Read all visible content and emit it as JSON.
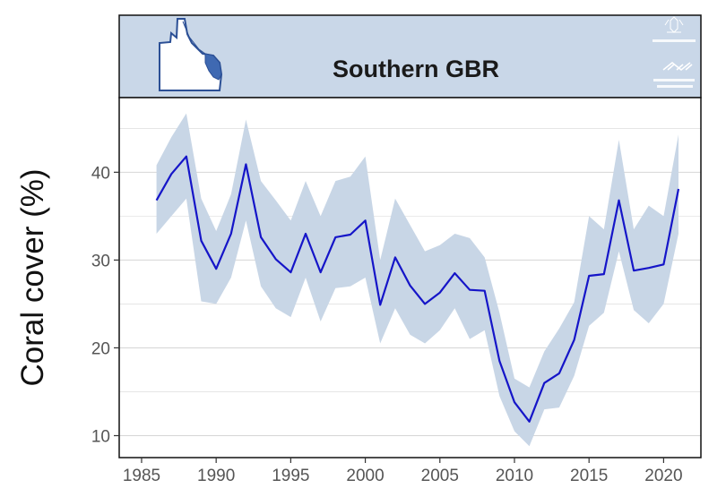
{
  "chart_data": {
    "type": "line",
    "title": "Southern GBR",
    "xlabel": "",
    "ylabel": "Coral cover (%)",
    "xlim": [
      1983.5,
      2022.5
    ],
    "ylim": [
      7.5,
      48.5
    ],
    "xticks": [
      1985,
      1990,
      1995,
      2000,
      2005,
      2010,
      2015,
      2020
    ],
    "yticks": [
      10,
      20,
      30,
      40
    ],
    "grid": "horizontal",
    "legend": "none",
    "series": [
      {
        "x": [
          1986,
          1987,
          1988,
          1989,
          1990,
          1991,
          1992,
          1993,
          1994,
          1995,
          1996,
          1997,
          1998,
          1999,
          2000,
          2001,
          2002,
          2003,
          2004,
          2005,
          2006,
          2007,
          2008,
          2009,
          2010,
          2011,
          2012,
          2013,
          2014,
          2015,
          2016,
          2017,
          2018,
          2019,
          2020,
          2021
        ],
        "y": [
          36.8,
          39.8,
          41.8,
          32.2,
          29.0,
          33.0,
          40.9,
          32.6,
          30.1,
          28.6,
          33.0,
          28.6,
          32.6,
          32.9,
          34.5,
          24.9,
          30.3,
          27.1,
          25.0,
          26.3,
          28.5,
          26.6,
          26.5,
          18.5,
          13.8,
          11.6,
          16.0,
          17.1,
          20.9,
          28.2,
          28.4,
          36.8,
          28.8,
          29.1,
          29.5,
          38.1
        ],
        "lower": [
          33.0,
          35.0,
          37.0,
          25.3,
          25.0,
          28.0,
          34.5,
          27.0,
          24.5,
          23.5,
          28.0,
          23.0,
          26.8,
          27.0,
          28.0,
          20.5,
          24.5,
          21.5,
          20.5,
          22.0,
          24.5,
          21.0,
          22.0,
          14.5,
          10.5,
          8.8,
          13.0,
          13.2,
          16.8,
          22.5,
          24.0,
          31.0,
          24.3,
          22.8,
          25.0,
          33.0
        ],
        "upper": [
          40.8,
          44.0,
          46.7,
          37.0,
          33.3,
          37.5,
          46.0,
          39.0,
          36.8,
          34.5,
          39.0,
          35.0,
          39.0,
          39.5,
          41.8,
          30.0,
          37.0,
          34.0,
          31.0,
          31.7,
          33.0,
          32.5,
          30.3,
          24.0,
          16.5,
          15.5,
          19.6,
          22.2,
          25.2,
          35.0,
          33.5,
          43.7,
          33.5,
          36.2,
          35.0,
          44.3
        ]
      }
    ],
    "colors": {
      "line": "#1515c8",
      "band": "#c8d6e6",
      "header_bg": "#c9d7e8",
      "gridline": "#d6d6d6",
      "map_region": "#3f69b2",
      "map_outline": "#2b4f95"
    }
  }
}
